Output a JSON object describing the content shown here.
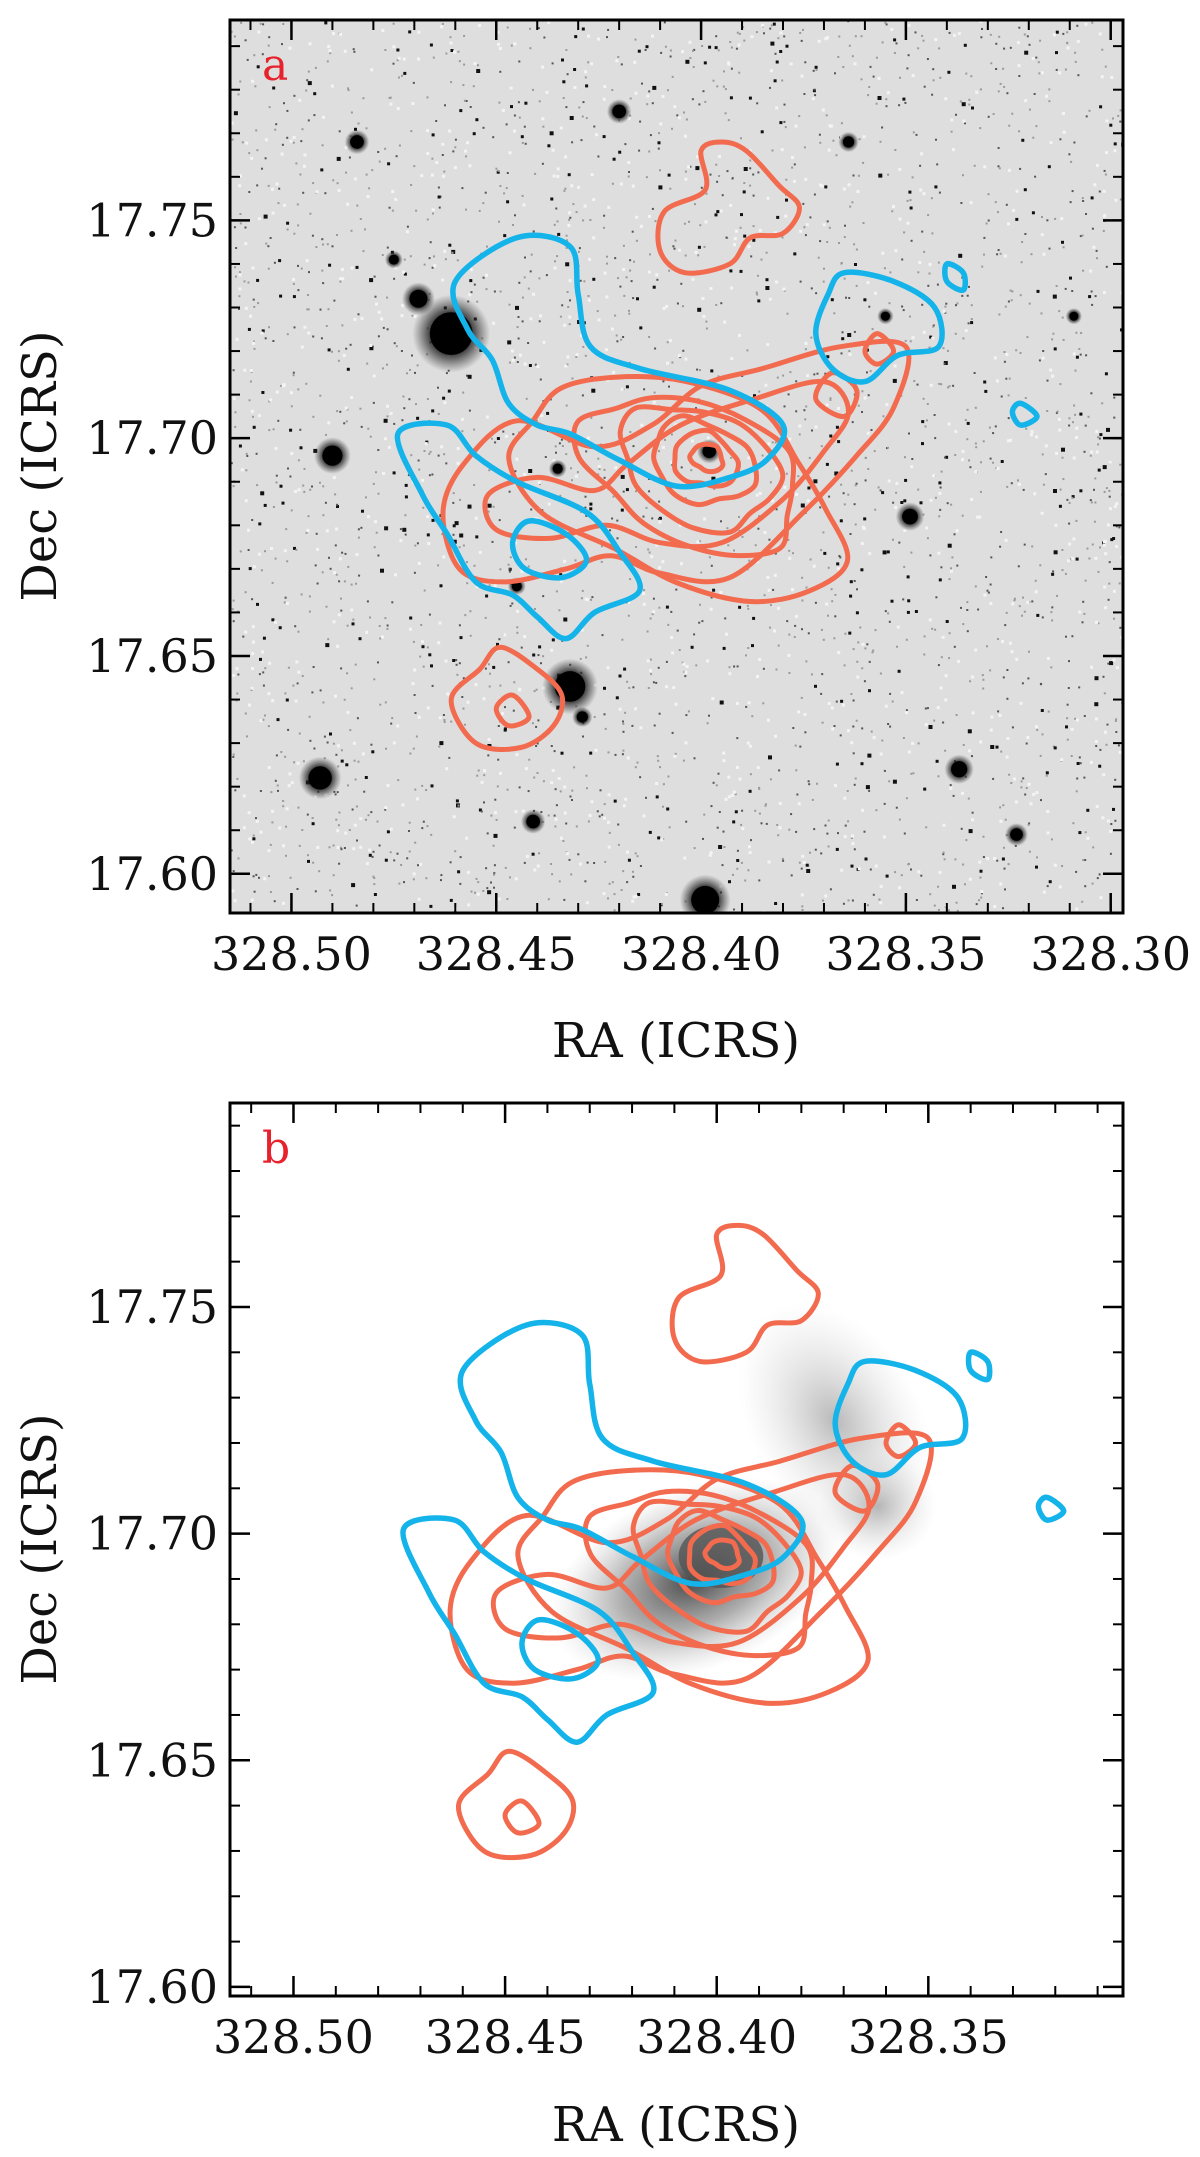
{
  "chart_data": [
    {
      "panel": "a",
      "type": "scatter",
      "xlabel": "RA (ICRS)",
      "ylabel": "Dec (ICRS)",
      "xlim": [
        328.515,
        328.297
      ],
      "ylim": [
        17.591,
        17.796
      ],
      "x_ticks": [
        328.5,
        328.45,
        328.4,
        328.35,
        328.3
      ],
      "x_tick_labels": [
        "328.50",
        "328.45",
        "328.40",
        "328.35",
        "328.30"
      ],
      "y_ticks": [
        17.6,
        17.65,
        17.7,
        17.75
      ],
      "y_tick_labels": [
        "17.60",
        "17.65",
        "17.70",
        "17.75"
      ],
      "background": "greyscale optical image (inverted, stars shown dark)",
      "bright_sources": [
        {
          "ra": 328.461,
          "dec": 17.724,
          "r": 0.0095
        },
        {
          "ra": 328.432,
          "dec": 17.643,
          "r": 0.0068
        },
        {
          "ra": 328.399,
          "dec": 17.594,
          "r": 0.0062
        },
        {
          "ra": 328.493,
          "dec": 17.622,
          "r": 0.0052
        },
        {
          "ra": 328.469,
          "dec": 17.732,
          "r": 0.004
        },
        {
          "ra": 328.49,
          "dec": 17.696,
          "r": 0.0045
        },
        {
          "ra": 328.349,
          "dec": 17.682,
          "r": 0.0035
        },
        {
          "ra": 328.337,
          "dec": 17.624,
          "r": 0.0036
        },
        {
          "ra": 328.42,
          "dec": 17.775,
          "r": 0.003
        },
        {
          "ra": 328.484,
          "dec": 17.768,
          "r": 0.003
        },
        {
          "ra": 328.364,
          "dec": 17.768,
          "r": 0.0025
        },
        {
          "ra": 328.323,
          "dec": 17.609,
          "r": 0.0028
        },
        {
          "ra": 328.441,
          "dec": 17.612,
          "r": 0.003
        },
        {
          "ra": 328.429,
          "dec": 17.636,
          "r": 0.0025
        },
        {
          "ra": 328.398,
          "dec": 17.697,
          "r": 0.003
        },
        {
          "ra": 328.435,
          "dec": 17.693,
          "r": 0.0022
        },
        {
          "ra": 328.445,
          "dec": 17.666,
          "r": 0.0022
        },
        {
          "ra": 328.309,
          "dec": 17.728,
          "r": 0.002
        },
        {
          "ra": 328.355,
          "dec": 17.728,
          "r": 0.002
        },
        {
          "ra": 328.475,
          "dec": 17.741,
          "r": 0.0022
        }
      ]
    },
    {
      "panel": "b",
      "type": "scatter",
      "xlabel": "RA (ICRS)",
      "ylabel": "Dec (ICRS)",
      "xlim": [
        328.515,
        328.304
      ],
      "ylim": [
        17.598,
        17.795
      ],
      "x_ticks": [
        328.5,
        328.45,
        328.4,
        328.35
      ],
      "x_tick_labels": [
        "328.50",
        "328.45",
        "328.40",
        "328.35"
      ],
      "y_ticks": [
        17.6,
        17.65,
        17.7,
        17.75
      ],
      "y_tick_labels": [
        "17.60",
        "17.65",
        "17.70",
        "17.75"
      ],
      "background": "smooth grey emission map peaking near RA 328.40, Dec 17.695"
    }
  ],
  "contour_sets": {
    "red": {
      "color": "#f26b4f",
      "levels": [
        {
          "cx": 328.3985,
          "cy": 17.6955,
          "rx": 0.004,
          "ry": 0.003
        },
        {
          "cx": 328.399,
          "cy": 17.695,
          "rx": 0.008,
          "ry": 0.006
        },
        {
          "cx": 328.3995,
          "cy": 17.6945,
          "rx": 0.013,
          "ry": 0.009
        },
        {
          "cx": 328.4005,
          "cy": 17.6935,
          "rx": 0.02,
          "ry": 0.013
        },
        {
          "cx": 328.402,
          "cy": 17.692,
          "rx": 0.028,
          "ry": 0.016
        },
        {
          "cx": 328.405,
          "cy": 17.689,
          "rx": 0.042,
          "ry": 0.022
        }
      ],
      "paths": [
        [
          [
            328.395,
            17.768
          ],
          [
            328.389,
            17.766
          ],
          [
            328.381,
            17.758
          ],
          [
            328.376,
            17.753
          ],
          [
            328.38,
            17.747
          ],
          [
            328.388,
            17.746
          ],
          [
            328.393,
            17.74
          ],
          [
            328.404,
            17.738
          ],
          [
            328.41,
            17.743
          ],
          [
            328.409,
            17.752
          ],
          [
            328.399,
            17.757
          ],
          [
            328.4,
            17.766
          ]
        ],
        [
          [
            328.449,
            17.652
          ],
          [
            328.44,
            17.647
          ],
          [
            328.434,
            17.641
          ],
          [
            328.436,
            17.634
          ],
          [
            328.444,
            17.629
          ],
          [
            328.455,
            17.63
          ],
          [
            328.461,
            17.64
          ],
          [
            328.454,
            17.647
          ]
        ],
        [
          [
            328.446,
            17.641
          ],
          [
            328.442,
            17.636
          ],
          [
            328.447,
            17.634
          ],
          [
            328.45,
            17.638
          ]
        ],
        [
          [
            328.445,
            17.704
          ],
          [
            328.426,
            17.698
          ],
          [
            328.412,
            17.703
          ],
          [
            328.4,
            17.712
          ],
          [
            328.385,
            17.716
          ],
          [
            328.366,
            17.721
          ],
          [
            328.35,
            17.721
          ],
          [
            328.353,
            17.707
          ],
          [
            328.362,
            17.696
          ],
          [
            328.375,
            17.683
          ],
          [
            328.393,
            17.668
          ],
          [
            328.41,
            17.669
          ],
          [
            328.422,
            17.673
          ],
          [
            328.433,
            17.67
          ],
          [
            328.448,
            17.667
          ],
          [
            328.459,
            17.67
          ],
          [
            328.463,
            17.683
          ],
          [
            328.458,
            17.694
          ]
        ],
        [
          [
            328.44,
            17.691
          ],
          [
            328.426,
            17.688
          ],
          [
            328.418,
            17.694
          ],
          [
            328.405,
            17.703
          ],
          [
            328.387,
            17.709
          ],
          [
            328.37,
            17.713
          ],
          [
            328.364,
            17.706
          ],
          [
            328.37,
            17.697
          ],
          [
            328.38,
            17.686
          ],
          [
            328.395,
            17.676
          ],
          [
            328.41,
            17.676
          ],
          [
            328.423,
            17.68
          ],
          [
            328.437,
            17.677
          ],
          [
            328.45,
            17.679
          ],
          [
            328.452,
            17.687
          ]
        ],
        [
          [
            328.368,
            17.715
          ],
          [
            328.362,
            17.711
          ],
          [
            328.365,
            17.705
          ],
          [
            328.372,
            17.709
          ]
        ],
        [
          [
            328.357,
            17.724
          ],
          [
            328.353,
            17.72
          ],
          [
            328.357,
            17.717
          ],
          [
            328.36,
            17.72
          ]
        ]
      ]
    },
    "blue": {
      "color": "#14b3ea",
      "paths": [
        [
          [
            328.46,
            17.736
          ],
          [
            328.445,
            17.746
          ],
          [
            328.432,
            17.744
          ],
          [
            328.43,
            17.733
          ],
          [
            328.427,
            17.721
          ],
          [
            328.415,
            17.716
          ],
          [
            328.393,
            17.711
          ],
          [
            328.38,
            17.703
          ],
          [
            328.384,
            17.695
          ],
          [
            328.393,
            17.691
          ],
          [
            328.406,
            17.689
          ],
          [
            328.42,
            17.695
          ],
          [
            328.432,
            17.701
          ],
          [
            328.44,
            17.703
          ],
          [
            328.447,
            17.708
          ],
          [
            328.451,
            17.718
          ],
          [
            328.457,
            17.725
          ]
        ],
        [
          [
            328.474,
            17.701
          ],
          [
            328.462,
            17.703
          ],
          [
            328.455,
            17.696
          ],
          [
            328.445,
            17.69
          ],
          [
            328.428,
            17.683
          ],
          [
            328.42,
            17.674
          ],
          [
            328.415,
            17.665
          ],
          [
            328.426,
            17.66
          ],
          [
            328.433,
            17.654
          ],
          [
            328.44,
            17.659
          ],
          [
            328.446,
            17.664
          ],
          [
            328.455,
            17.667
          ],
          [
            328.462,
            17.678
          ],
          [
            328.468,
            17.687
          ]
        ],
        [
          [
            328.365,
            17.738
          ],
          [
            328.353,
            17.736
          ],
          [
            328.343,
            17.73
          ],
          [
            328.342,
            17.721
          ],
          [
            328.352,
            17.719
          ],
          [
            328.36,
            17.713
          ],
          [
            328.368,
            17.716
          ],
          [
            328.372,
            17.724
          ],
          [
            328.369,
            17.733
          ]
        ],
        [
          [
            328.442,
            17.681
          ],
          [
            328.433,
            17.678
          ],
          [
            328.428,
            17.672
          ],
          [
            328.434,
            17.668
          ],
          [
            328.443,
            17.67
          ],
          [
            328.446,
            17.676
          ]
        ],
        [
          [
            328.34,
            17.74
          ],
          [
            328.336,
            17.738
          ],
          [
            328.336,
            17.734
          ],
          [
            328.34,
            17.736
          ]
        ],
        [
          [
            328.322,
            17.708
          ],
          [
            328.318,
            17.705
          ],
          [
            328.322,
            17.703
          ],
          [
            328.324,
            17.706
          ]
        ]
      ]
    }
  }
}
